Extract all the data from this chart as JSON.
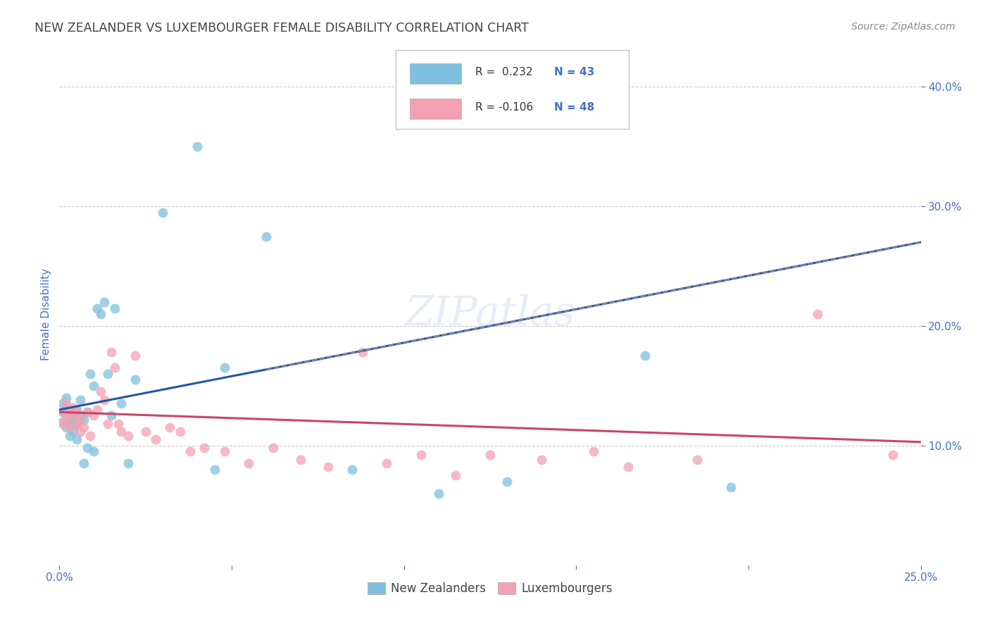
{
  "title": "NEW ZEALANDER VS LUXEMBOURGER FEMALE DISABILITY CORRELATION CHART",
  "source": "Source: ZipAtlas.com",
  "ylabel": "Female Disability",
  "x_min": 0.0,
  "x_max": 0.25,
  "y_min": 0.0,
  "y_max": 0.42,
  "x_ticks": [
    0.0,
    0.05,
    0.1,
    0.15,
    0.2,
    0.25
  ],
  "x_tick_labels": [
    "0.0%",
    "",
    "",
    "",
    "",
    "25.0%"
  ],
  "y_ticks": [
    0.1,
    0.2,
    0.3,
    0.4
  ],
  "y_tick_labels": [
    "10.0%",
    "20.0%",
    "30.0%",
    "40.0%"
  ],
  "nz_color": "#7fbfdf",
  "lux_color": "#f4a0b0",
  "nz_line_color": "#2255aa",
  "lux_line_color": "#cc4466",
  "nz_R": 0.232,
  "nz_N": 43,
  "lux_R": -0.106,
  "lux_N": 48,
  "nz_x": [
    0.001,
    0.001,
    0.001,
    0.002,
    0.002,
    0.002,
    0.003,
    0.003,
    0.003,
    0.004,
    0.004,
    0.004,
    0.005,
    0.005,
    0.005,
    0.006,
    0.006,
    0.007,
    0.007,
    0.008,
    0.008,
    0.009,
    0.01,
    0.01,
    0.011,
    0.012,
    0.013,
    0.014,
    0.015,
    0.016,
    0.018,
    0.02,
    0.022,
    0.03,
    0.04,
    0.045,
    0.048,
    0.06,
    0.085,
    0.11,
    0.13,
    0.17,
    0.195
  ],
  "nz_y": [
    0.135,
    0.12,
    0.128,
    0.132,
    0.115,
    0.14,
    0.125,
    0.118,
    0.108,
    0.128,
    0.122,
    0.112,
    0.13,
    0.105,
    0.118,
    0.125,
    0.138,
    0.122,
    0.085,
    0.128,
    0.098,
    0.16,
    0.15,
    0.095,
    0.215,
    0.21,
    0.22,
    0.16,
    0.125,
    0.215,
    0.135,
    0.085,
    0.155,
    0.295,
    0.35,
    0.08,
    0.165,
    0.275,
    0.08,
    0.06,
    0.07,
    0.175,
    0.065
  ],
  "lux_x": [
    0.001,
    0.001,
    0.002,
    0.002,
    0.003,
    0.003,
    0.004,
    0.004,
    0.005,
    0.005,
    0.006,
    0.006,
    0.007,
    0.008,
    0.009,
    0.01,
    0.011,
    0.012,
    0.013,
    0.014,
    0.015,
    0.016,
    0.017,
    0.018,
    0.02,
    0.022,
    0.025,
    0.028,
    0.032,
    0.035,
    0.038,
    0.042,
    0.048,
    0.055,
    0.062,
    0.07,
    0.078,
    0.088,
    0.095,
    0.105,
    0.115,
    0.125,
    0.14,
    0.155,
    0.165,
    0.185,
    0.22,
    0.242
  ],
  "lux_y": [
    0.128,
    0.118,
    0.135,
    0.122,
    0.128,
    0.115,
    0.132,
    0.125,
    0.118,
    0.128,
    0.112,
    0.122,
    0.115,
    0.128,
    0.108,
    0.125,
    0.13,
    0.145,
    0.138,
    0.118,
    0.178,
    0.165,
    0.118,
    0.112,
    0.108,
    0.175,
    0.112,
    0.105,
    0.115,
    0.112,
    0.095,
    0.098,
    0.095,
    0.085,
    0.098,
    0.088,
    0.082,
    0.178,
    0.085,
    0.092,
    0.075,
    0.092,
    0.088,
    0.095,
    0.082,
    0.088,
    0.21,
    0.092
  ],
  "background_color": "#ffffff",
  "grid_color": "#cccccc",
  "title_color": "#444444",
  "tick_label_color": "#4472c4",
  "axis_label_color": "#4472c4"
}
